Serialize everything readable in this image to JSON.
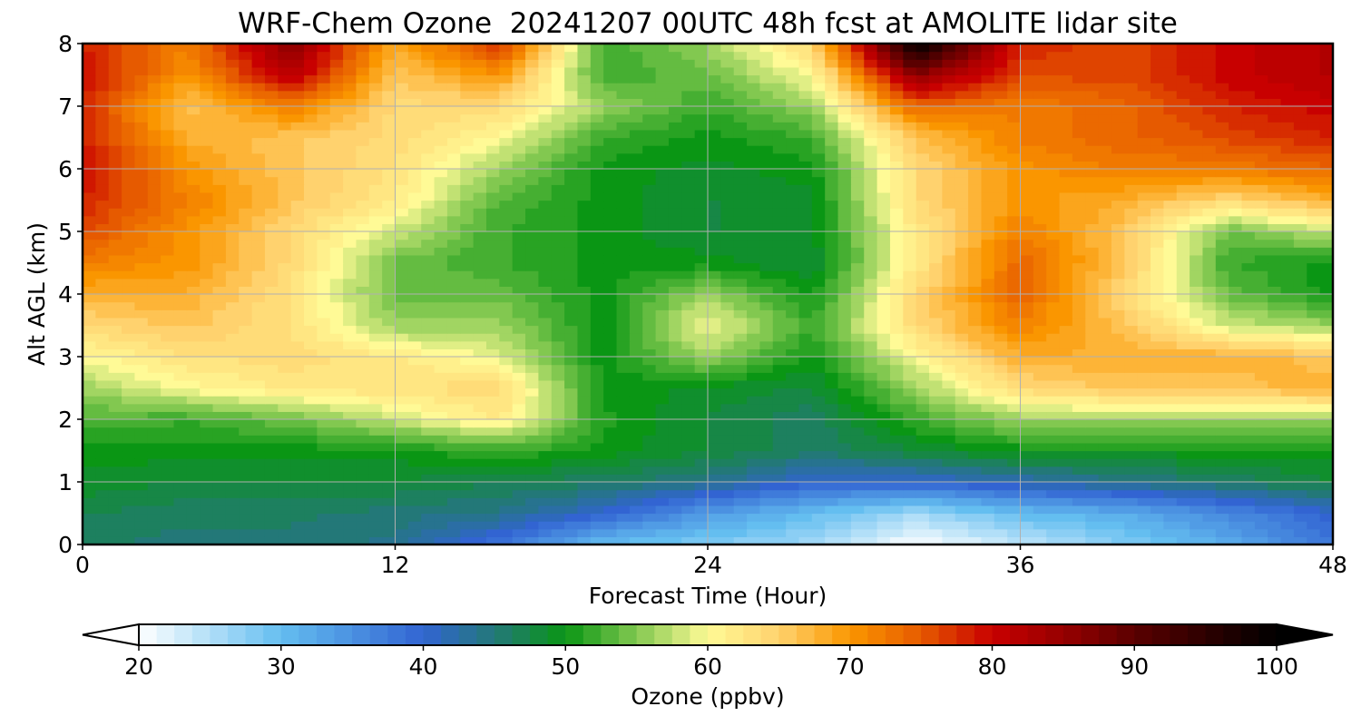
{
  "chart_data": {
    "type": "heatmap",
    "title": "WRF-Chem Ozone  20241207 00UTC 48h fcst at AMOLITE lidar site",
    "xlabel": "Forecast Time (Hour)",
    "ylabel": "Alt AGL (km)",
    "xlim": [
      0,
      48
    ],
    "ylim": [
      0,
      8
    ],
    "x_ticks": [
      "0",
      "12",
      "24",
      "36",
      "48"
    ],
    "y_ticks": [
      "0",
      "1",
      "2",
      "3",
      "4",
      "5",
      "6",
      "7",
      "8"
    ],
    "grid": true,
    "x": [
      0,
      4,
      8,
      12,
      16,
      20,
      24,
      28,
      32,
      36,
      40,
      44,
      48
    ],
    "y": [
      0,
      0.5,
      1,
      1.5,
      2,
      2.5,
      3,
      3.5,
      4,
      4.5,
      5,
      5.5,
      6,
      6.5,
      7,
      7.5,
      8
    ],
    "values": [
      [
        46,
        45,
        45,
        44,
        38,
        30,
        28,
        26,
        20,
        24,
        28,
        32,
        38
      ],
      [
        47,
        46,
        46,
        45,
        44,
        40,
        34,
        30,
        26,
        30,
        32,
        36,
        40
      ],
      [
        49,
        48,
        48,
        48,
        47,
        46,
        44,
        40,
        40,
        42,
        44,
        46,
        48
      ],
      [
        50,
        50,
        50,
        50,
        52,
        50,
        48,
        46,
        48,
        50,
        50,
        50,
        50
      ],
      [
        53,
        52,
        54,
        58,
        62,
        51,
        48,
        46,
        52,
        56,
        56,
        56,
        56
      ],
      [
        56,
        60,
        62,
        63,
        64,
        50,
        49,
        48,
        56,
        64,
        66,
        66,
        68
      ],
      [
        60,
        63,
        64,
        62,
        59,
        50,
        56,
        50,
        60,
        68,
        68,
        68,
        66
      ],
      [
        64,
        66,
        63,
        56,
        56,
        50,
        60,
        52,
        64,
        72,
        66,
        58,
        56
      ],
      [
        68,
        68,
        63,
        54,
        54,
        50,
        56,
        50,
        64,
        74,
        64,
        54,
        50
      ],
      [
        72,
        70,
        64,
        54,
        52,
        50,
        50,
        48,
        62,
        74,
        66,
        52,
        50
      ],
      [
        76,
        70,
        64,
        58,
        52,
        50,
        48,
        49,
        62,
        72,
        66,
        54,
        58
      ],
      [
        78,
        72,
        66,
        62,
        53,
        50,
        48,
        49,
        64,
        70,
        68,
        64,
        68
      ],
      [
        80,
        70,
        66,
        63,
        56,
        50,
        49,
        50,
        64,
        70,
        72,
        72,
        74
      ],
      [
        78,
        68,
        66,
        64,
        60,
        52,
        50,
        52,
        66,
        72,
        74,
        76,
        78
      ],
      [
        78,
        66,
        72,
        64,
        64,
        56,
        52,
        56,
        74,
        72,
        74,
        78,
        80
      ],
      [
        80,
        70,
        82,
        66,
        70,
        52,
        54,
        60,
        86,
        76,
        76,
        80,
        82
      ],
      [
        78,
        72,
        86,
        68,
        78,
        52,
        56,
        64,
        100,
        78,
        76,
        80,
        82
      ]
    ],
    "colorbar": {
      "label": "Ozone  (ppbv)",
      "min": 20,
      "max": 100,
      "ticks": [
        "20",
        "30",
        "40",
        "50",
        "60",
        "70",
        "80",
        "90",
        "100"
      ],
      "extend": "both"
    }
  }
}
